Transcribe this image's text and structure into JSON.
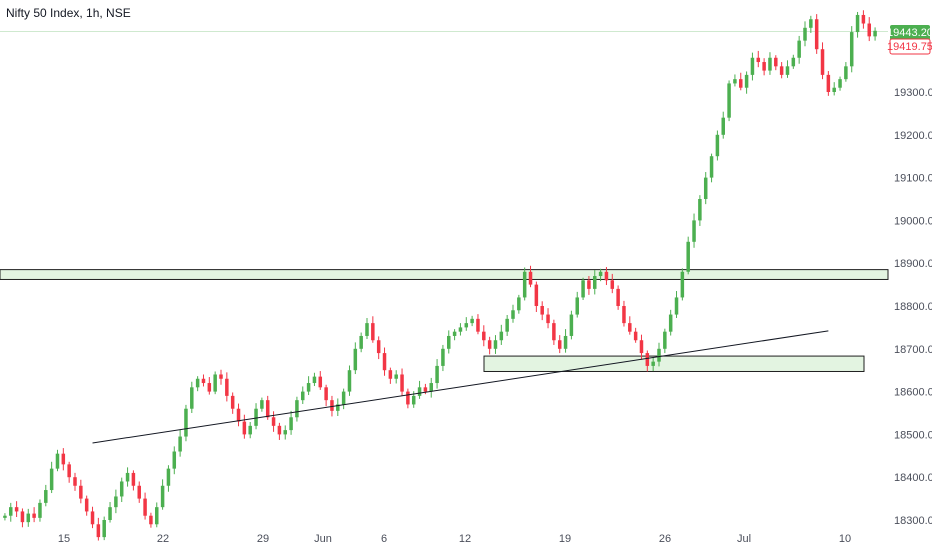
{
  "chart_data": {
    "type": "candlestick",
    "title": "Nifty 50 Index, 1h, NSE",
    "interval": "1h",
    "y_axis": {
      "position": "right",
      "ticks": [
        18300,
        18400,
        18500,
        18600,
        18700,
        18800,
        18900,
        19000,
        19100,
        19200,
        19300
      ],
      "tick_labels": [
        "18300.00",
        "18400.00",
        "18500.00",
        "18600.00",
        "18700.00",
        "18800.00",
        "18900.00",
        "19000.00",
        "19100.00",
        "19200.00",
        "19300.00"
      ],
      "range": [
        18270,
        19510
      ]
    },
    "x_axis": {
      "tick_labels": [
        "15",
        "22",
        "29",
        "Jun",
        "6",
        "12",
        "19",
        "26",
        "Jul",
        "10"
      ]
    },
    "last_price": {
      "label": "19443.20",
      "value": 19443.2,
      "color": "#4caf50"
    },
    "second_price": {
      "label": "19419.75",
      "value": 19419.75,
      "color": "#f23645"
    },
    "up_color": "#4caf50",
    "down_color": "#f23645",
    "zones": [
      {
        "name": "resistance-breakout-zone",
        "low": 18862,
        "high": 18885,
        "fill": "#e3f4e1",
        "stroke": "#1f1f1f"
      },
      {
        "name": "support-zone",
        "low": 18647,
        "high": 18683,
        "fill": "#e3f4e1",
        "stroke": "#1f1f1f"
      }
    ],
    "trendline": {
      "from": {
        "index": 15,
        "value": 18480
      },
      "to": {
        "index": 141,
        "value": 18742
      }
    },
    "closes": [
      18310,
      18330,
      18320,
      18295,
      18315,
      18305,
      18340,
      18370,
      18420,
      18455,
      18430,
      18400,
      18380,
      18350,
      18320,
      18290,
      18260,
      18300,
      18330,
      18355,
      18390,
      18410,
      18380,
      18350,
      18310,
      18290,
      18330,
      18380,
      18420,
      18460,
      18495,
      18560,
      18610,
      18630,
      18620,
      18600,
      18640,
      18630,
      18590,
      18560,
      18530,
      18500,
      18520,
      18560,
      18580,
      18540,
      18520,
      18500,
      18510,
      18540,
      18580,
      18600,
      18620,
      18635,
      18610,
      18580,
      18555,
      18570,
      18600,
      18650,
      18700,
      18730,
      18760,
      18720,
      18690,
      18650,
      18630,
      18640,
      18600,
      18570,
      18590,
      18610,
      18600,
      18620,
      18660,
      18700,
      18730,
      18740,
      18750,
      18760,
      18770,
      18740,
      18720,
      18700,
      18720,
      18740,
      18770,
      18790,
      18820,
      18880,
      18850,
      18800,
      18780,
      18760,
      18720,
      18700,
      18730,
      18780,
      18820,
      18860,
      18840,
      18870,
      18880,
      18860,
      18840,
      18800,
      18760,
      18740,
      18720,
      18690,
      18660,
      18670,
      18700,
      18740,
      18780,
      18820,
      18880,
      18950,
      19000,
      19050,
      19100,
      19150,
      19200,
      19240,
      19320,
      19330,
      19310,
      19340,
      19380,
      19370,
      19350,
      19380,
      19360,
      19340,
      19360,
      19380,
      19420,
      19450,
      19470,
      19400,
      19340,
      19300,
      19310,
      19330,
      19360,
      19440,
      19480,
      19460,
      19430,
      19443
    ]
  }
}
